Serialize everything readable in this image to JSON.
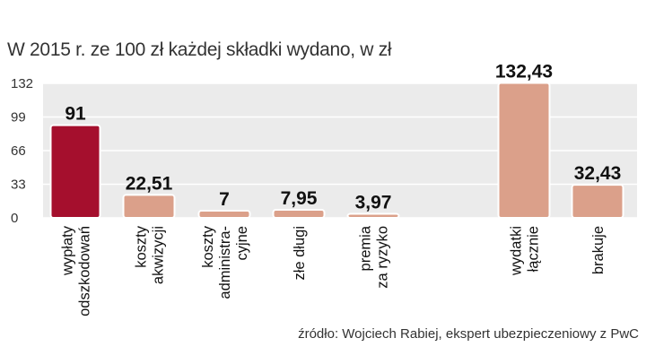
{
  "title": "W 2015 r. ze 100 zł każdej składki wydano, w zł",
  "source": "źródło: Wojciech Rabiej, ekspert ubezpieczeniowy z PwC",
  "chart_data": {
    "type": "bar",
    "title": "W 2015 r. ze 100 zł każdej składki wydano, w zł",
    "ylim": [
      0,
      132
    ],
    "yticks": [
      0,
      33,
      66,
      99,
      132
    ],
    "grid": true,
    "categories": [
      [
        "wypłaty",
        "odszkodowań"
      ],
      [
        "koszty",
        "akwizycji"
      ],
      [
        "koszty",
        "administra-",
        "cyjne"
      ],
      [
        "złe długi"
      ],
      [
        "premia",
        "za ryzyko"
      ],
      [
        "wydatki",
        "łącznie"
      ],
      [
        "brakuje"
      ]
    ],
    "values": [
      91,
      22.51,
      7,
      7.95,
      3.97,
      132.43,
      32.43
    ],
    "value_labels": [
      "91",
      "22,51",
      "7",
      "7,95",
      "3,97",
      "132,43",
      "32,43"
    ],
    "colors": [
      "#a50f2d",
      "#dba08a",
      "#dba08a",
      "#dba08a",
      "#dba08a",
      "#dba08a",
      "#dba08a"
    ]
  }
}
